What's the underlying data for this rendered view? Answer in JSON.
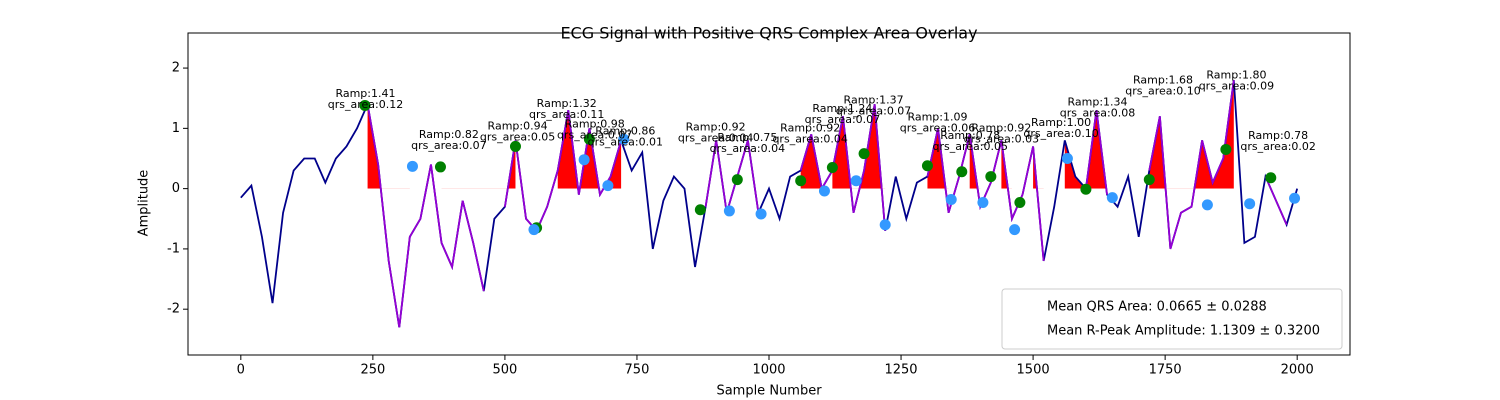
{
  "chart_data": {
    "type": "line",
    "title": "ECG Signal with Positive QRS Complex Area Overlay",
    "x_label": "Sample Number",
    "y_label": "Amplitude",
    "xlim": [
      -100,
      2100
    ],
    "ylim": [
      -2.76,
      2.25
    ],
    "xticks": [
      0,
      250,
      500,
      750,
      1000,
      1250,
      1500,
      1750,
      2000
    ],
    "yticks": [
      -2,
      -1,
      0,
      1,
      2
    ],
    "x": [
      0,
      20,
      40,
      60,
      80,
      100,
      120,
      140,
      160,
      180,
      200,
      220,
      240,
      260,
      280,
      300,
      320,
      340,
      360,
      380,
      400,
      420,
      440,
      460,
      480,
      500,
      520,
      540,
      560,
      580,
      600,
      620,
      640,
      660,
      680,
      700,
      720,
      740,
      760,
      780,
      800,
      820,
      840,
      860,
      880,
      900,
      920,
      940,
      960,
      980,
      1000,
      1020,
      1040,
      1060,
      1080,
      1100,
      1120,
      1140,
      1160,
      1180,
      1200,
      1220,
      1240,
      1260,
      1280,
      1300,
      1320,
      1340,
      1360,
      1380,
      1400,
      1420,
      1440,
      1460,
      1480,
      1500,
      1520,
      1540,
      1560,
      1580,
      1600,
      1620,
      1640,
      1660,
      1680,
      1700,
      1720,
      1740,
      1760,
      1780,
      1800,
      1820,
      1840,
      1860,
      1880,
      1900,
      1920,
      1940,
      1960,
      1980,
      2000
    ],
    "series": [
      {
        "color": "#00008b",
        "values": [
          -0.15,
          0.05,
          -0.8,
          -1.9,
          -0.4,
          0.3,
          0.5,
          0.5,
          0.1,
          0.5,
          0.7,
          1.0,
          1.4,
          0.4,
          -1.2,
          -2.3,
          -0.8,
          -0.5,
          0.4,
          -0.9,
          -1.3,
          -0.2,
          -0.9,
          -1.7,
          -0.5,
          -0.3,
          0.8,
          -0.5,
          -0.7,
          -0.3,
          0.3,
          1.3,
          -0.1,
          1.0,
          -0.1,
          0.2,
          0.8,
          0.3,
          0.6,
          -1.0,
          -0.2,
          0.2,
          0.0,
          -1.3,
          -0.3,
          0.8,
          -0.4,
          0.2,
          0.8,
          -0.4,
          0.0,
          -0.5,
          0.2,
          0.3,
          0.9,
          0.0,
          0.3,
          1.2,
          -0.4,
          0.3,
          1.4,
          -0.7,
          0.2,
          -0.5,
          0.1,
          0.2,
          1.0,
          -0.4,
          0.2,
          0.9,
          -0.3,
          0.1,
          0.8,
          -0.5,
          -0.1,
          0.7,
          -1.2,
          -0.3,
          0.8,
          0.2,
          0.0,
          1.3,
          -0.1,
          -0.3,
          0.2,
          -0.8,
          0.3,
          1.2,
          -1.0,
          -0.4,
          -0.3,
          0.8,
          0.1,
          0.5,
          1.8,
          -0.9,
          -0.8,
          0.2,
          -0.2,
          -0.6,
          0.0
        ]
      },
      {
        "color": "#9400d3",
        "values": [
          null,
          null,
          null,
          null,
          null,
          null,
          null,
          null,
          null,
          null,
          null,
          null,
          1.4,
          0.4,
          -1.2,
          -2.3,
          -0.8,
          -0.5,
          0.4,
          -0.9,
          -1.3,
          -0.2,
          -0.9,
          -1.7,
          null,
          -0.3,
          0.8,
          -0.5,
          -0.7,
          -0.3,
          0.3,
          1.3,
          -0.1,
          1.0,
          -0.1,
          0.2,
          0.8,
          null,
          null,
          null,
          null,
          null,
          null,
          null,
          -0.3,
          0.8,
          -0.4,
          0.2,
          0.8,
          -0.4,
          null,
          null,
          null,
          0.3,
          0.9,
          0.0,
          0.3,
          1.2,
          -0.4,
          0.3,
          1.4,
          -0.7,
          null,
          null,
          null,
          0.2,
          1.0,
          -0.4,
          0.2,
          0.9,
          -0.3,
          0.1,
          0.8,
          -0.5,
          -0.1,
          0.7,
          -1.2,
          null,
          null,
          null,
          0.0,
          1.3,
          -0.1,
          null,
          null,
          null,
          0.3,
          1.2,
          -1.0,
          -0.4,
          -0.3,
          0.8,
          0.1,
          0.5,
          1.8,
          null,
          null,
          0.2,
          -0.2,
          -0.6,
          null
        ]
      }
    ],
    "fill_color": "#ff0000",
    "fill_ranges": [
      [
        230,
        330
      ],
      [
        380,
        520
      ],
      [
        600,
        720
      ],
      [
        1060,
        1100
      ],
      [
        1120,
        1220
      ],
      [
        1300,
        1340
      ],
      [
        1370,
        1400
      ],
      [
        1440,
        1460
      ],
      [
        1500,
        1520
      ],
      [
        1560,
        1640
      ],
      [
        1720,
        1890
      ]
    ],
    "scatter": [
      {
        "color": "#008000",
        "x": [
          235,
          378,
          520,
          560,
          660,
          870,
          940,
          1060,
          1120,
          1180,
          1300,
          1365,
          1420,
          1475,
          1600,
          1720,
          1865,
          1950
        ],
        "values": [
          1.38,
          0.36,
          0.7,
          -0.65,
          0.82,
          -0.35,
          0.15,
          0.13,
          0.35,
          0.58,
          0.38,
          0.28,
          0.2,
          -0.23,
          -0.01,
          0.15,
          0.65,
          0.18
        ]
      },
      {
        "color": "#3399ff",
        "x": [
          325,
          555,
          650,
          695,
          725,
          925,
          985,
          1105,
          1165,
          1220,
          1345,
          1405,
          1465,
          1565,
          1650,
          1830,
          1910,
          1995
        ],
        "values": [
          0.37,
          -0.68,
          0.48,
          0.05,
          0.82,
          -0.37,
          -0.42,
          -0.04,
          0.13,
          -0.6,
          -0.18,
          -0.23,
          -0.68,
          0.5,
          -0.15,
          -0.27,
          -0.25,
          -0.16
        ]
      }
    ],
    "annotations": [
      {
        "x": 236,
        "y": 1.57,
        "lines": [
          "Ramp:1.41",
          "qrs_area:0.12"
        ]
      },
      {
        "x": 394,
        "y": 0.89,
        "lines": [
          "Ramp:0.82",
          "qrs_area:0.07"
        ]
      },
      {
        "x": 524,
        "y": 1.03,
        "lines": [
          "Ramp:0.94",
          "qrs_area:0.05"
        ]
      },
      {
        "x": 617,
        "y": 1.4,
        "lines": [
          "Ramp:1.32",
          "qrs_area:0.11"
        ]
      },
      {
        "x": 670,
        "y": 1.06,
        "lines": [
          "Ramp:0.98",
          "qrs_area:0.07"
        ]
      },
      {
        "x": 728,
        "y": 0.95,
        "lines": [
          "Ramp:0.86",
          "qrs_area:0.01"
        ]
      },
      {
        "x": 899,
        "y": 1.01,
        "lines": [
          "Ramp:0.92",
          "qrs_area:0.04"
        ]
      },
      {
        "x": 959,
        "y": 0.84,
        "lines": [
          "Ramp:0.75",
          "qrs_area:0.04"
        ]
      },
      {
        "x": 1078,
        "y": 1.0,
        "lines": [
          "Ramp:0.92",
          "qrs_area:0.04"
        ]
      },
      {
        "x": 1139,
        "y": 1.32,
        "lines": [
          "Ramp:1.24",
          "qrs_area:0.07"
        ]
      },
      {
        "x": 1198,
        "y": 1.46,
        "lines": [
          "Ramp:1.37",
          "qrs_area:0.07"
        ]
      },
      {
        "x": 1319,
        "y": 1.18,
        "lines": [
          "Ramp:1.09",
          "qrs_area:0.06"
        ]
      },
      {
        "x": 1381,
        "y": 0.87,
        "lines": [
          "Ramp:0.78",
          "qrs_area:0.05"
        ]
      },
      {
        "x": 1440,
        "y": 1.0,
        "lines": [
          "Ramp:0.92",
          "qrs_area:0.03"
        ]
      },
      {
        "x": 1553,
        "y": 1.09,
        "lines": [
          "Ramp:1.00",
          "qrs_area:0.10"
        ]
      },
      {
        "x": 1622,
        "y": 1.43,
        "lines": [
          "Ramp:1.34",
          "qrs_area:0.08"
        ]
      },
      {
        "x": 1746,
        "y": 1.79,
        "lines": [
          "Ramp:1.68",
          "qrs_area:0.10"
        ]
      },
      {
        "x": 1885,
        "y": 1.88,
        "lines": [
          "Ramp:1.80",
          "qrs_area:0.09"
        ]
      },
      {
        "x": 1964,
        "y": 0.87,
        "lines": [
          "Ramp:0.78",
          "qrs_area:0.02"
        ]
      }
    ],
    "legend": {
      "loc": "lower right",
      "entries": [
        "Mean QRS Area: 0.0665 ± 0.0288",
        "Mean R-Peak Amplitude: 1.1309 ± 0.3200"
      ]
    }
  }
}
